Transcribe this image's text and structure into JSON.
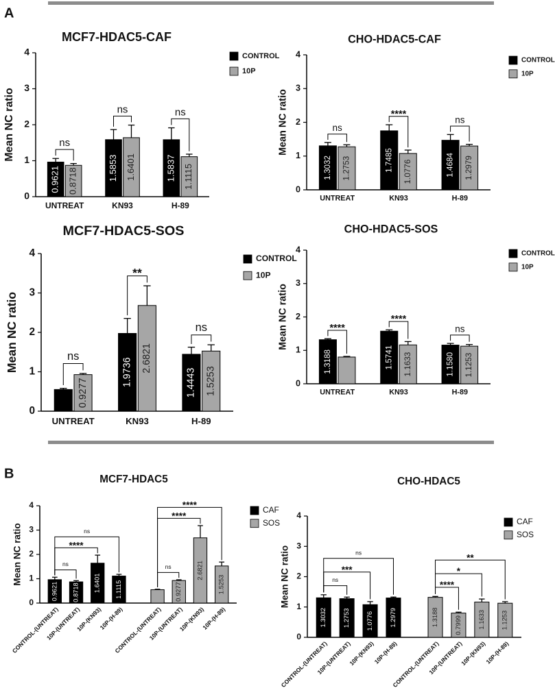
{
  "panel_labels": [
    "A",
    "B"
  ],
  "chart_data": [
    {
      "type": "bar",
      "title": "MCF7-HDAC5-CAF",
      "ylabel": "Mean NC ratio",
      "categories": [
        "UNTREAT",
        "KN93",
        "H-89"
      ],
      "series": [
        {
          "name": "CONTROL",
          "color": "#000000",
          "values": [
            0.9621,
            1.5853,
            1.5837
          ],
          "errors": [
            0.1,
            0.28,
            0.33
          ]
        },
        {
          "name": "10P",
          "color": "#a6a6a6",
          "values": [
            0.8718,
            1.6401,
            1.1115
          ],
          "errors": [
            0.05,
            0.35,
            0.07
          ]
        }
      ],
      "ylim": [
        0,
        4
      ],
      "yticks": [
        0,
        1,
        2,
        3,
        4
      ],
      "annotations": [
        {
          "label": "ns",
          "from": [
            0,
            0
          ],
          "to": [
            1,
            0
          ]
        },
        {
          "label": "ns",
          "from": [
            0,
            1
          ],
          "to": [
            1,
            1
          ]
        },
        {
          "label": "ns",
          "from": [
            0,
            2
          ],
          "to": [
            1,
            2
          ]
        }
      ]
    },
    {
      "type": "bar",
      "title": "CHO-HDAC5-CAF",
      "ylabel": "Mean NC ratio",
      "categories": [
        "UNTREAT",
        "KN93",
        "H-89"
      ],
      "series": [
        {
          "name": "CONTROL",
          "color": "#000000",
          "values": [
            1.3032,
            1.7485,
            1.4684
          ],
          "errors": [
            0.1,
            0.18,
            0.17
          ]
        },
        {
          "name": "10P",
          "color": "#a6a6a6",
          "values": [
            1.2753,
            1.0776,
            1.2979
          ],
          "errors": [
            0.06,
            0.1,
            0.05
          ]
        }
      ],
      "ylim": [
        0,
        4
      ],
      "yticks": [
        0,
        1,
        2,
        3,
        4
      ],
      "annotations": [
        {
          "label": "ns",
          "from": [
            0,
            0
          ],
          "to": [
            1,
            0
          ]
        },
        {
          "label": "****",
          "from": [
            0,
            1
          ],
          "to": [
            1,
            1
          ]
        },
        {
          "label": "ns",
          "from": [
            0,
            2
          ],
          "to": [
            1,
            2
          ]
        }
      ]
    },
    {
      "type": "bar",
      "title": "MCF7-HDAC5-SOS",
      "ylabel": "Mean NC ratio",
      "categories": [
        "UNTREAT",
        "KN93",
        "H-89"
      ],
      "series": [
        {
          "name": "CONTROL",
          "color": "#000000",
          "values": [
            0.55,
            1.9736,
            1.4443
          ],
          "value_labels": [
            null,
            "1.9736",
            "1.4443"
          ],
          "errors": [
            0.03,
            0.38,
            0.18
          ]
        },
        {
          "name": "10P",
          "color": "#a6a6a6",
          "values": [
            0.9277,
            2.6821,
            1.5253
          ],
          "errors": [
            0.03,
            0.5,
            0.16
          ]
        }
      ],
      "ylim": [
        0,
        4
      ],
      "yticks": [
        0,
        1,
        2,
        3,
        4
      ],
      "annotations": [
        {
          "label": "ns",
          "from": [
            0,
            0
          ],
          "to": [
            1,
            0
          ]
        },
        {
          "label": "**",
          "from": [
            0,
            1
          ],
          "to": [
            1,
            1
          ]
        },
        {
          "label": "ns",
          "from": [
            0,
            2
          ],
          "to": [
            1,
            2
          ]
        }
      ]
    },
    {
      "type": "bar",
      "title": "CHO-HDAC5-SOS",
      "ylabel": "Mean NC ratio",
      "categories": [
        "UNTREAT",
        "KN93",
        "H-89"
      ],
      "series": [
        {
          "name": "CONTROL",
          "color": "#000000",
          "values": [
            1.3188,
            1.5741,
            1.158
          ],
          "value_labels": [
            "1.3188",
            "1.5741",
            "1.1580"
          ],
          "errors": [
            0.03,
            0.04,
            0.05
          ]
        },
        {
          "name": "10P",
          "color": "#a6a6a6",
          "values": [
            0.8,
            1.1633,
            1.1253
          ],
          "value_labels": [
            null,
            "1.1633",
            "1.1253"
          ],
          "errors": [
            0.02,
            0.1,
            0.05
          ]
        }
      ],
      "ylim": [
        0,
        4
      ],
      "yticks": [
        0,
        1,
        2,
        3,
        4
      ],
      "annotations": [
        {
          "label": "****",
          "from": [
            0,
            0
          ],
          "to": [
            1,
            0
          ]
        },
        {
          "label": "****",
          "from": [
            0,
            1
          ],
          "to": [
            1,
            1
          ]
        },
        {
          "label": "ns",
          "from": [
            0,
            2
          ],
          "to": [
            1,
            2
          ]
        }
      ]
    },
    {
      "type": "bar",
      "title": "MCF7-HDAC5",
      "ylabel": "Mean NC ratio",
      "categories": [
        "CONTROL-(UNTREAT)",
        "10P-(UNTREAT)",
        "10P-(KN93)",
        "10P-(H-89)",
        "CONTROL-(UNTREAT)",
        "10P-(UNTREAT)",
        "10P-(KN93)",
        "10P-(H-89)"
      ],
      "series": [
        {
          "name": "CAF",
          "color": "#000000",
          "values": [
            0.9621,
            0.8718,
            1.6401,
            1.1115,
            null,
            null,
            null,
            null
          ],
          "errors": [
            0.1,
            0.05,
            0.33,
            0.07,
            null,
            null,
            null,
            null
          ]
        },
        {
          "name": "SOS",
          "color": "#a6a6a6",
          "values": [
            null,
            null,
            null,
            null,
            0.55,
            0.9277,
            2.6821,
            1.5253
          ],
          "value_labels": [
            null,
            null,
            null,
            null,
            null,
            "0.9277",
            "2.6821",
            "1.5253"
          ],
          "errors": [
            null,
            null,
            null,
            null,
            0.02,
            0.03,
            0.5,
            0.16
          ]
        }
      ],
      "ylim": [
        0,
        4
      ],
      "yticks": [
        0,
        1,
        2,
        3,
        4
      ],
      "annotations": [
        {
          "label": "ns",
          "from": [
            0,
            0
          ],
          "to": [
            0,
            1
          ]
        },
        {
          "label": "****",
          "from": [
            0,
            0
          ],
          "to": [
            0,
            2
          ]
        },
        {
          "label": "ns",
          "from": [
            0,
            0
          ],
          "to": [
            0,
            3
          ]
        },
        {
          "label": "ns",
          "from": [
            1,
            4
          ],
          "to": [
            1,
            5
          ]
        },
        {
          "label": "****",
          "from": [
            1,
            4
          ],
          "to": [
            1,
            6
          ]
        },
        {
          "label": "****",
          "from": [
            1,
            4
          ],
          "to": [
            1,
            7
          ]
        }
      ]
    },
    {
      "type": "bar",
      "title": "CHO-HDAC5",
      "ylabel": "Mean NC ratio",
      "categories": [
        "CONTROL-(UNTREAT)",
        "10P-(UNTREAT)",
        "10P-(KN93)",
        "10P-(H-89)",
        "CONTROL-(UNTREAT)",
        "10P-(UNTREAT)",
        "10P-(KN93)",
        "10P-(H-89)"
      ],
      "series": [
        {
          "name": "CAF",
          "color": "#000000",
          "values": [
            1.3032,
            1.2753,
            1.0776,
            1.2979,
            null,
            null,
            null,
            null
          ],
          "errors": [
            0.1,
            0.05,
            0.1,
            0.03,
            null,
            null,
            null,
            null
          ]
        },
        {
          "name": "SOS",
          "color": "#a6a6a6",
          "values": [
            null,
            null,
            null,
            null,
            1.3188,
            0.7999,
            1.1633,
            1.1253
          ],
          "errors": [
            null,
            null,
            null,
            null,
            0.03,
            0.03,
            0.1,
            0.05
          ]
        }
      ],
      "ylim": [
        0,
        4
      ],
      "yticks": [
        0,
        1,
        2,
        3,
        4
      ],
      "annotations": [
        {
          "label": "ns",
          "from": [
            0,
            0
          ],
          "to": [
            0,
            1
          ]
        },
        {
          "label": "***",
          "from": [
            0,
            0
          ],
          "to": [
            0,
            2
          ]
        },
        {
          "label": "ns",
          "from": [
            0,
            0
          ],
          "to": [
            0,
            3
          ]
        },
        {
          "label": "****",
          "from": [
            1,
            4
          ],
          "to": [
            1,
            5
          ]
        },
        {
          "label": "*",
          "from": [
            1,
            4
          ],
          "to": [
            1,
            6
          ]
        },
        {
          "label": "**",
          "from": [
            1,
            4
          ],
          "to": [
            1,
            7
          ]
        }
      ]
    }
  ]
}
